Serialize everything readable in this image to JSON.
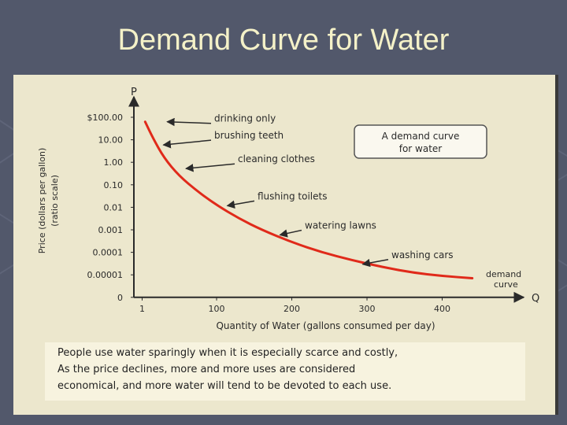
{
  "slide": {
    "title": "Demand Curve for Water"
  },
  "colors": {
    "background": "#52586b",
    "title": "#f4f1c8",
    "curve": "#e02a1a",
    "panel": "#ece7cd"
  },
  "caption": {
    "lines": [
      "People use water sparingly when it is especially scarce and costly,",
      "As the price declines, more and more uses are considered",
      "economical, and more water will tend to be devoted to each use."
    ]
  },
  "chart_data": {
    "type": "line",
    "title": "A demand curve for water",
    "xlabel": "Quantity of Water (gallons consumed per day)",
    "ylabel": "Price (dollars per gallon)",
    "ylabel_sub": "(ratio scale)",
    "x_axis_letter": "Q",
    "y_axis_letter": "P",
    "xticks": [
      "1",
      "100",
      "200",
      "300",
      "400"
    ],
    "xtick_values": [
      1,
      100,
      200,
      300,
      400
    ],
    "yticks": [
      "$100.00",
      "10.00",
      "1.00",
      "0.10",
      "0.01",
      "0.001",
      "0.0001",
      "0.00001",
      "0"
    ],
    "xlim": [
      -10,
      500
    ],
    "curve_label": [
      "demand",
      "curve"
    ],
    "series": [
      {
        "name": "demand",
        "x": [
          5,
          15,
          30,
          50,
          75,
          100,
          130,
          160,
          200,
          240,
          280,
          320,
          360,
          400,
          440
        ],
        "y_level": [
          0.2,
          0.9,
          1.8,
          2.6,
          3.3,
          3.9,
          4.5,
          5.0,
          5.55,
          6.0,
          6.35,
          6.65,
          6.9,
          7.05,
          7.15
        ]
      }
    ],
    "annotations": [
      {
        "text": "drinking only",
        "y_level": 0.2,
        "tip_x": 30
      },
      {
        "text": "brushing teeth",
        "y_level": 0.95,
        "tip_x": 25
      },
      {
        "text": "cleaning clothes",
        "y_level": 2.0,
        "tip_x": 55
      },
      {
        "text": "flushing toilets",
        "y_level": 3.65,
        "tip_x": 110
      },
      {
        "text": "watering lawns",
        "y_level": 4.95,
        "tip_x": 180
      },
      {
        "text": "washing cars",
        "y_level": 6.25,
        "tip_x": 290
      }
    ]
  }
}
